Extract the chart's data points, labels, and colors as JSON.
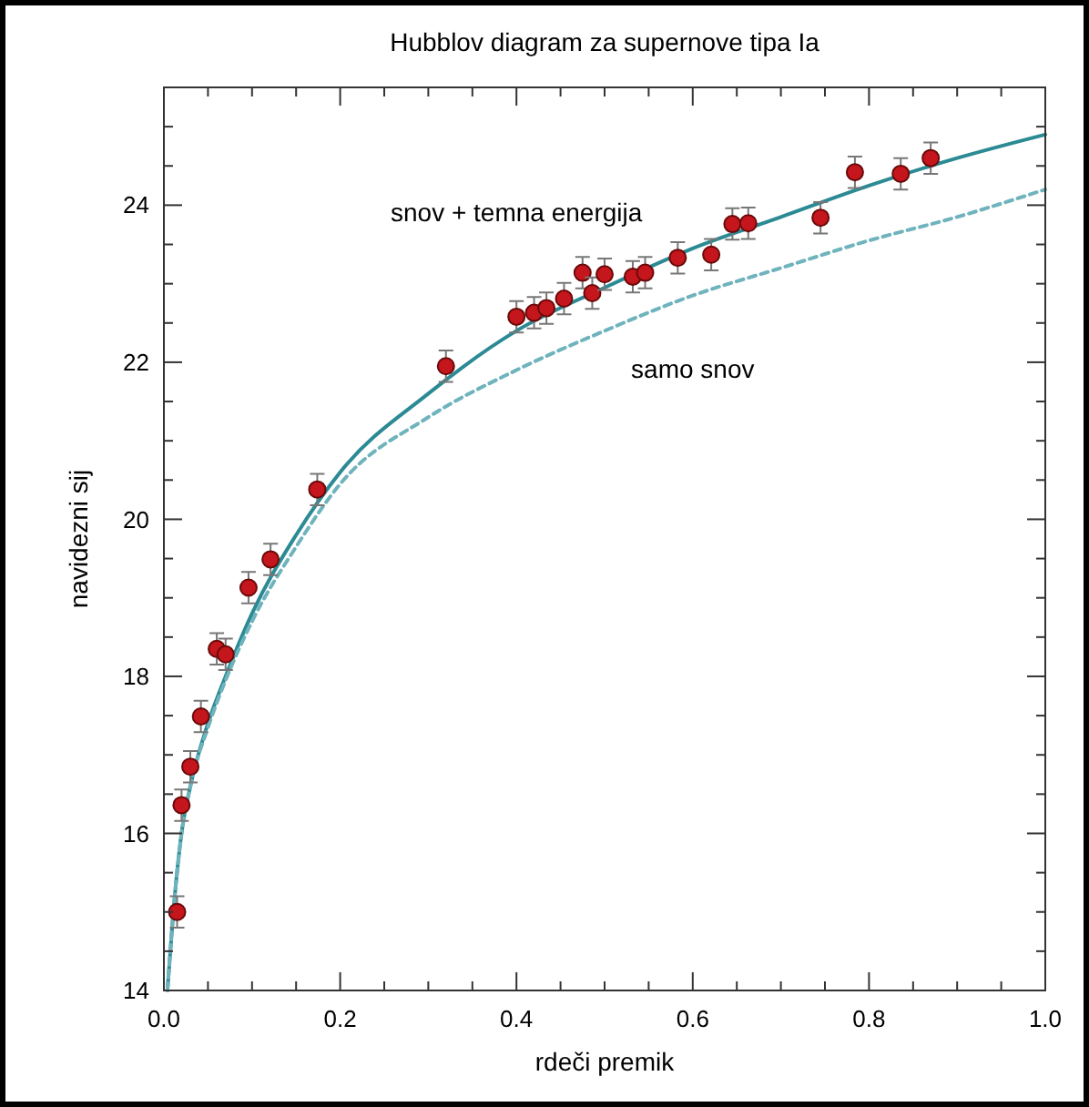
{
  "chart_data": {
    "type": "scatter",
    "title": "Hubblov diagram za supernove tipa Ia",
    "xlabel": "rdeči premik",
    "ylabel": "navidezni sij",
    "xlim": [
      0,
      1
    ],
    "ylim": [
      14,
      25.5
    ],
    "xticks": [
      {
        "value": 0,
        "label": "0.0"
      },
      {
        "value": 0.05,
        "label": null
      },
      {
        "value": 0.1,
        "label": null
      },
      {
        "value": 0.15,
        "label": null
      },
      {
        "value": 0.2,
        "label": "0.2"
      },
      {
        "value": 0.25,
        "label": null
      },
      {
        "value": 0.3,
        "label": null
      },
      {
        "value": 0.35,
        "label": null
      },
      {
        "value": 0.4,
        "label": "0.4"
      },
      {
        "value": 0.45,
        "label": null
      },
      {
        "value": 0.5,
        "label": null
      },
      {
        "value": 0.55,
        "label": null
      },
      {
        "value": 0.6,
        "label": "0.6"
      },
      {
        "value": 0.65,
        "label": null
      },
      {
        "value": 0.7,
        "label": null
      },
      {
        "value": 0.75,
        "label": null
      },
      {
        "value": 0.8,
        "label": "0.8"
      },
      {
        "value": 0.85,
        "label": null
      },
      {
        "value": 0.9,
        "label": null
      },
      {
        "value": 0.95,
        "label": null
      },
      {
        "value": 1,
        "label": "1.0"
      }
    ],
    "yticks": [
      14,
      {
        "value": 14.5,
        "label": null
      },
      {
        "value": 15,
        "label": null
      },
      {
        "value": 15.5,
        "label": null
      },
      16,
      {
        "value": 16.5,
        "label": null
      },
      {
        "value": 17,
        "label": null
      },
      {
        "value": 17.5,
        "label": null
      },
      18,
      {
        "value": 18.5,
        "label": null
      },
      {
        "value": 19,
        "label": null
      },
      {
        "value": 19.5,
        "label": null
      },
      20,
      {
        "value": 20.5,
        "label": null
      },
      {
        "value": 21,
        "label": null
      },
      {
        "value": 21.5,
        "label": null
      },
      22,
      {
        "value": 22.5,
        "label": null
      },
      {
        "value": 23,
        "label": null
      },
      {
        "value": 23.5,
        "label": null
      },
      24,
      {
        "value": 24.5,
        "label": null
      },
      {
        "value": 25,
        "label": null
      }
    ],
    "grid": false,
    "series": [
      {
        "type": "line",
        "name": "snov + temna energija",
        "color": "#2b8a93",
        "line_style": "solid",
        "x": [
          0.004,
          0.01,
          0.02,
          0.03,
          0.05,
          0.07,
          0.1,
          0.15,
          0.2,
          0.3,
          0.4,
          0.5,
          0.6,
          0.7,
          0.8,
          0.9,
          1.0
        ],
        "values": [
          14.0,
          14.9,
          16.0,
          16.6,
          17.4,
          18.0,
          18.8,
          19.8,
          20.6,
          21.6,
          22.4,
          22.95,
          23.45,
          23.85,
          24.25,
          24.6,
          24.9
        ]
      },
      {
        "type": "line",
        "name": "samo snov",
        "color": "#6fb3bd",
        "line_style": "dashed",
        "x": [
          0.004,
          0.01,
          0.02,
          0.03,
          0.05,
          0.07,
          0.1,
          0.15,
          0.2,
          0.3,
          0.4,
          0.5,
          0.6,
          0.7,
          0.8,
          0.9,
          1.0
        ],
        "values": [
          14.0,
          14.9,
          16.0,
          16.6,
          17.35,
          17.95,
          18.7,
          19.65,
          20.45,
          21.3,
          21.9,
          22.4,
          22.85,
          23.2,
          23.55,
          23.85,
          24.2
        ]
      },
      {
        "color": "#c4161c",
        "marker": "circle",
        "x": [
          0.015,
          0.02,
          0.03,
          0.042,
          0.06,
          0.07,
          0.096,
          0.121,
          0.174,
          0.32,
          0.4,
          0.42,
          0.434,
          0.454,
          0.475,
          0.486,
          0.5,
          0.532,
          0.546,
          0.583,
          0.621,
          0.645,
          0.663,
          0.745,
          0.784,
          0.836,
          0.87
        ],
        "values": [
          15.0,
          16.36,
          16.85,
          17.49,
          18.35,
          18.28,
          19.13,
          19.49,
          20.38,
          21.95,
          22.58,
          22.63,
          22.69,
          22.81,
          23.14,
          22.88,
          23.12,
          23.09,
          23.14,
          23.33,
          23.37,
          23.76,
          23.77,
          23.84,
          24.42,
          24.4,
          24.6
        ],
        "errors": [
          0.2,
          0.2,
          0.2,
          0.2,
          0.2,
          0.2,
          0.2,
          0.2,
          0.2,
          0.2,
          0.2,
          0.2,
          0.2,
          0.2,
          0.2,
          0.2,
          0.2,
          0.2,
          0.2,
          0.2,
          0.2,
          0.2,
          0.2,
          0.2,
          0.2,
          0.2,
          0.2
        ]
      }
    ]
  }
}
